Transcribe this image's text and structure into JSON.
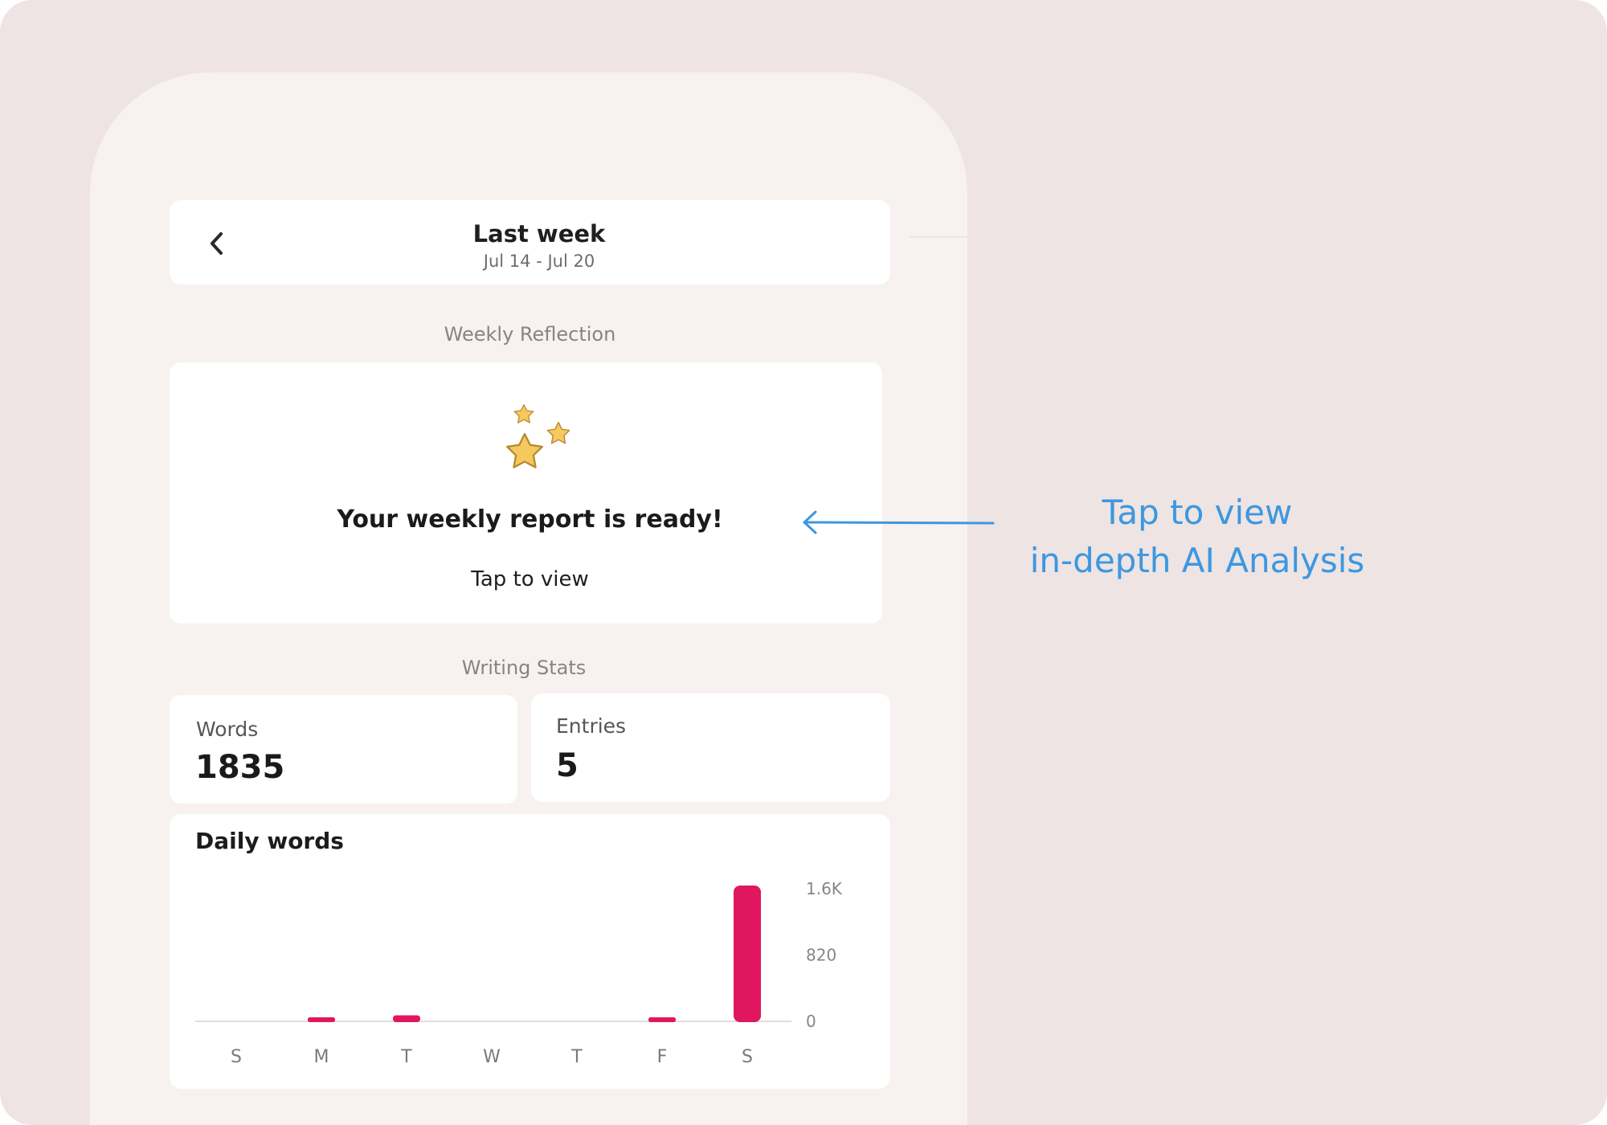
{
  "header": {
    "title": "Last week",
    "date_range": "Jul 14 - Jul 20",
    "back_icon": "chevron-left-icon"
  },
  "weekly_reflection": {
    "section_label": "Weekly Reflection",
    "icon": "stars-icon",
    "message": "Your weekly report is ready!",
    "action": "Tap to view"
  },
  "writing_stats": {
    "section_label": "Writing Stats",
    "words_label": "Words",
    "words_value": "1835",
    "entries_label": "Entries",
    "entries_value": "5"
  },
  "daily_words": {
    "title": "Daily words"
  },
  "annotation": {
    "line1": "Tap to view",
    "line2": "in-depth AI Analysis",
    "color": "#3d97e0"
  },
  "colors": {
    "bar": "#e0175f",
    "star_fill": "#f6c860",
    "star_stroke": "#b88a2e",
    "background": "#ede4e3"
  },
  "chart_data": {
    "type": "bar",
    "categories": [
      "S",
      "M",
      "T",
      "W",
      "T",
      "F",
      "S"
    ],
    "values": [
      0,
      35,
      75,
      0,
      0,
      45,
      1680
    ],
    "ylim": [
      0,
      1640
    ],
    "yticks": [
      {
        "value": 0,
        "label": "0"
      },
      {
        "value": 820,
        "label": "820"
      },
      {
        "value": 1640,
        "label": "1.6K"
      }
    ],
    "grid": false
  }
}
